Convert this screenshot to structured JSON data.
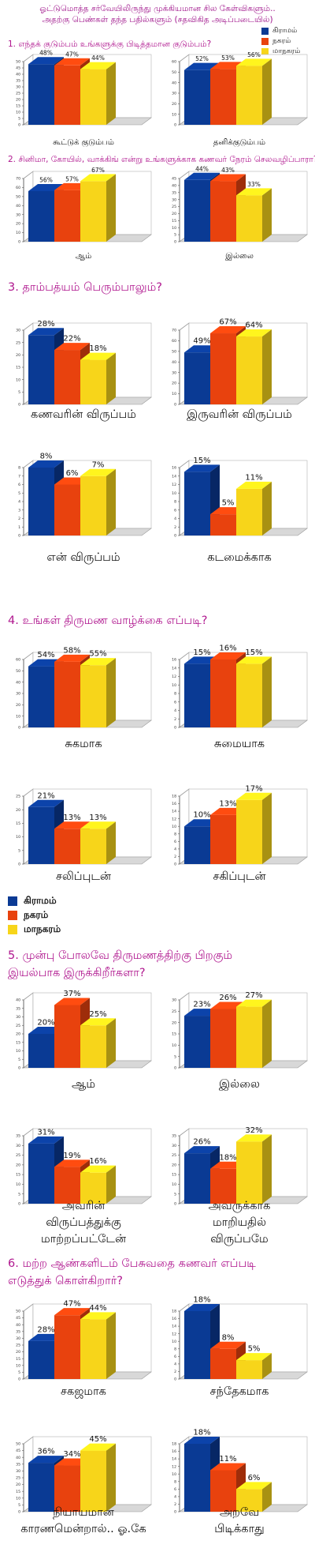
{
  "header": {
    "line1": "ஓட்டுமொத்த சர்வேயிலிருந்து முக்கியமான சில கேள்விகளும்..",
    "line2": "அதற்கு பெண்கள் தந்த பதில்களும் (சதவிகித அடிப்படையில்)"
  },
  "legend": [
    {
      "label": "கிராமம்",
      "color": "#0a3a94"
    },
    {
      "label": "நகரம்",
      "color": "#e8420e"
    },
    {
      "label": "மாநகரம்",
      "color": "#f7d51a"
    }
  ],
  "questions": [
    {
      "label": "1. எந்தக் குடும்பம் உங்களுக்கு பிடித்தமான குடும்பம்?"
    },
    {
      "label": "2. சினிமா, கோயில், வாக்கிங் என்று உங்களுக்காக கணவர் நேரம் செலவழிப்பாரா?"
    },
    {
      "label": "3. தாம்பத்யம் பெரும்பாலும்?"
    },
    {
      "label": "4. உங்கள் திருமண வாழ்க்கை எப்படி?"
    },
    {
      "label": "5. முன்பு போலவே திருமணத்திற்கு பிறகும்",
      "label2": "இயல்பாக இருக்கிறீர்களா?"
    },
    {
      "label": "6. மற்ற ஆண்களிடம் பேசுவதை கணவர் எப்படி",
      "label2": "எடுத்துக் கொள்கிறார்?"
    }
  ],
  "chart_data": [
    {
      "type": "bar",
      "caption": "கூட்டுக் குடும்பம்",
      "categories": [
        "கிராமம்",
        "நகரம்",
        "மாநகரம்"
      ],
      "values": [
        48,
        47,
        44
      ],
      "labels": [
        "48%",
        "47%",
        "44%"
      ],
      "ylim": [
        0,
        50
      ],
      "ticks": [
        0,
        5,
        10,
        15,
        20,
        25,
        30,
        35,
        40,
        45,
        50
      ]
    },
    {
      "type": "bar",
      "caption": "தனிக்குடும்பம்",
      "categories": [
        "கிராமம்",
        "நகரம்",
        "மாநகரம்"
      ],
      "values": [
        52,
        53,
        56
      ],
      "labels": [
        "52%",
        "53%",
        "56%"
      ],
      "ylim": [
        0,
        60
      ],
      "ticks": [
        0,
        10,
        20,
        30,
        40,
        50,
        60
      ]
    },
    {
      "type": "bar",
      "caption": "ஆம்",
      "categories": [
        "கிராமம்",
        "நகரம்",
        "மாநகரம்"
      ],
      "values": [
        56,
        57,
        67
      ],
      "labels": [
        "56%",
        "57%",
        "67%"
      ],
      "ylim": [
        0,
        70
      ],
      "ticks": [
        0,
        10,
        20,
        30,
        40,
        50,
        60,
        70
      ]
    },
    {
      "type": "bar",
      "caption": "இல்லை",
      "categories": [
        "கிராமம்",
        "நகரம்",
        "மாநகரம்"
      ],
      "values": [
        44,
        43,
        33
      ],
      "labels": [
        "44%",
        "43%",
        "33%"
      ],
      "ylim": [
        0,
        45
      ],
      "ticks": [
        0,
        5,
        10,
        15,
        20,
        25,
        30,
        35,
        40,
        45
      ]
    },
    {
      "type": "bar",
      "caption": "கணவரின் விருப்பம்",
      "categories": [
        "கிராமம்",
        "நகரம்",
        "மாநகரம்"
      ],
      "values": [
        28,
        22,
        18
      ],
      "labels": [
        "28%",
        "22%",
        "18%"
      ],
      "ylim": [
        0,
        30
      ],
      "ticks": [
        0,
        5,
        10,
        15,
        20,
        25,
        30
      ]
    },
    {
      "type": "bar",
      "caption": "இருவரின் விருப்பம்",
      "categories": [
        "கிராமம்",
        "நகரம்",
        "மாநகரம்"
      ],
      "values": [
        49,
        67,
        64
      ],
      "labels": [
        "49%",
        "67%",
        "64%"
      ],
      "ylim": [
        0,
        70
      ],
      "ticks": [
        0,
        10,
        20,
        30,
        40,
        50,
        60,
        70
      ]
    },
    {
      "type": "bar",
      "caption": "என் விருப்பம்",
      "categories": [
        "கிராமம்",
        "நகரம்",
        "மாநகரம்"
      ],
      "values": [
        8,
        6,
        7
      ],
      "labels": [
        "8%",
        "6%",
        "7%"
      ],
      "ylim": [
        0,
        8
      ],
      "ticks": [
        0,
        1,
        2,
        3,
        4,
        5,
        6,
        7,
        8
      ]
    },
    {
      "type": "bar",
      "caption": "கடமைக்காக",
      "categories": [
        "கிராமம்",
        "நகரம்",
        "மாநகரம்"
      ],
      "values": [
        15,
        5,
        11
      ],
      "labels": [
        "15%",
        "5%",
        "11%"
      ],
      "ylim": [
        0,
        16
      ],
      "ticks": [
        0,
        2,
        4,
        6,
        8,
        10,
        12,
        14,
        16
      ]
    },
    {
      "type": "bar",
      "caption": "சுகமாக",
      "categories": [
        "கிராமம்",
        "நகரம்",
        "மாநகரம்"
      ],
      "values": [
        54,
        58,
        55
      ],
      "labels": [
        "54%",
        "58%",
        "55%"
      ],
      "ylim": [
        0,
        60
      ],
      "ticks": [
        0,
        10,
        20,
        30,
        40,
        50,
        60
      ]
    },
    {
      "type": "bar",
      "caption": "சுமையாக",
      "categories": [
        "கிராமம்",
        "நகரம்",
        "மாநகரம்"
      ],
      "values": [
        15,
        16,
        15
      ],
      "labels": [
        "15%",
        "16%",
        "15%"
      ],
      "ylim": [
        0,
        16
      ],
      "ticks": [
        0,
        2,
        4,
        6,
        8,
        10,
        12,
        14,
        16
      ]
    },
    {
      "type": "bar",
      "caption": "சலிப்புடன்",
      "categories": [
        "கிராமம்",
        "நகரம்",
        "மாநகரம்"
      ],
      "values": [
        21,
        13,
        13
      ],
      "labels": [
        "21%",
        "13%",
        "13%"
      ],
      "ylim": [
        0,
        25
      ],
      "ticks": [
        0,
        5,
        10,
        15,
        20,
        25
      ]
    },
    {
      "type": "bar",
      "caption": "சகிப்புடன்",
      "categories": [
        "கிராமம்",
        "நகரம்",
        "மாநகரம்"
      ],
      "values": [
        10,
        13,
        17
      ],
      "labels": [
        "10%",
        "13%",
        "17%"
      ],
      "ylim": [
        0,
        18
      ],
      "ticks": [
        0,
        2,
        4,
        6,
        8,
        10,
        12,
        14,
        16,
        18
      ]
    },
    {
      "type": "bar",
      "caption": "ஆம்",
      "categories": [
        "கிராமம்",
        "நகரம்",
        "மாநகரம்"
      ],
      "values": [
        20,
        37,
        25
      ],
      "labels": [
        "20%",
        "37%",
        "25%"
      ],
      "ylim": [
        0,
        40
      ],
      "ticks": [
        0,
        5,
        10,
        15,
        20,
        25,
        30,
        35,
        40
      ]
    },
    {
      "type": "bar",
      "caption": "இல்லை",
      "categories": [
        "கிராமம்",
        "நகரம்",
        "மாநகரம்"
      ],
      "values": [
        23,
        26,
        27
      ],
      "labels": [
        "23%",
        "26%",
        "27%"
      ],
      "ylim": [
        0,
        30
      ],
      "ticks": [
        0,
        5,
        10,
        15,
        20,
        25,
        30
      ]
    },
    {
      "type": "bar",
      "caption": "அவரின்|விருப்பத்துக்கு|மாற்றப்பட்டேன்",
      "categories": [
        "கிராமம்",
        "நகரம்",
        "மாநகரம்"
      ],
      "values": [
        31,
        19,
        16
      ],
      "labels": [
        "31%",
        "19%",
        "16%"
      ],
      "ylim": [
        0,
        35
      ],
      "ticks": [
        0,
        5,
        10,
        15,
        20,
        25,
        30,
        35
      ]
    },
    {
      "type": "bar",
      "caption": "அவருக்காக|மாறியதில்|விருப்பமே",
      "categories": [
        "கிராமம்",
        "நகரம்",
        "மாநகரம்"
      ],
      "values": [
        26,
        18,
        32
      ],
      "labels": [
        "26%",
        "18%",
        "32%"
      ],
      "ylim": [
        0,
        35
      ],
      "ticks": [
        0,
        5,
        10,
        15,
        20,
        25,
        30,
        35
      ]
    },
    {
      "type": "bar",
      "caption": "சகஜமாக",
      "categories": [
        "கிராமம்",
        "நகரம்",
        "மாநகரம்"
      ],
      "values": [
        28,
        47,
        44
      ],
      "labels": [
        "28%",
        "47%",
        "44%"
      ],
      "ylim": [
        0,
        50
      ],
      "ticks": [
        0,
        5,
        10,
        15,
        20,
        25,
        30,
        35,
        40,
        45,
        50
      ]
    },
    {
      "type": "bar",
      "caption": "சந்தேகமாக",
      "categories": [
        "கிராமம்",
        "நகரம்",
        "மாநகரம்"
      ],
      "values": [
        18,
        8,
        5
      ],
      "labels": [
        "18%",
        "8%",
        "5%"
      ],
      "ylim": [
        0,
        18
      ],
      "ticks": [
        0,
        2,
        4,
        6,
        8,
        10,
        12,
        14,
        16,
        18
      ]
    },
    {
      "type": "bar",
      "caption": "நியாயமான|காரணமென்றால்.. ஓ.கே",
      "categories": [
        "கிராமம்",
        "நகரம்",
        "மாநகரம்"
      ],
      "values": [
        36,
        34,
        45
      ],
      "labels": [
        "36%",
        "34%",
        "45%"
      ],
      "ylim": [
        0,
        50
      ],
      "ticks": [
        0,
        5,
        10,
        15,
        20,
        25,
        30,
        35,
        40,
        45,
        50
      ]
    },
    {
      "type": "bar",
      "caption": "அறவே|பிடிக்காது",
      "categories": [
        "கிராமம்",
        "நகரம்",
        "மாநகரம்"
      ],
      "values": [
        18,
        11,
        6
      ],
      "labels": [
        "18%",
        "11%",
        "6%"
      ],
      "ylim": [
        0,
        18
      ],
      "ticks": [
        0,
        2,
        4,
        6,
        8,
        10,
        12,
        14,
        16,
        18
      ]
    }
  ]
}
